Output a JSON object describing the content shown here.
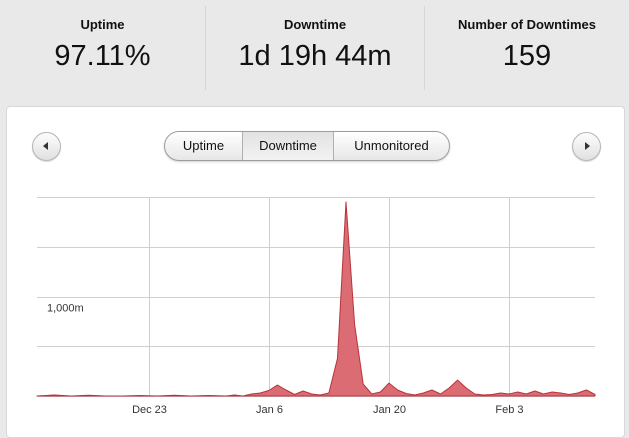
{
  "stats": [
    {
      "label": "Uptime",
      "value": "97.11%"
    },
    {
      "label": "Downtime",
      "value": "1d 19h 44m"
    },
    {
      "label": "Number of Downtimes",
      "value": "159"
    }
  ],
  "tabs": [
    {
      "label": "Uptime",
      "active": false
    },
    {
      "label": "Downtime",
      "active": true
    },
    {
      "label": "Unmonitored",
      "active": false
    }
  ],
  "nav": {
    "prev_icon": "chevron-left-icon",
    "next_icon": "chevron-right-icon"
  },
  "colors": {
    "series_fill": "#dc6c73",
    "series_stroke": "#b8333c",
    "grid": "#cfcfcf"
  },
  "chart_data": {
    "type": "area",
    "x_ticks": [
      "Dec 23",
      "Jan 6",
      "Jan 20",
      "Feb 3"
    ],
    "y_tick_labels": [
      "1,000m"
    ],
    "y_unit": "minutes",
    "ylim": [
      0,
      2000
    ],
    "grid": true,
    "series": [
      {
        "x": [
          "Dec 10",
          "Dec 12",
          "Dec 14",
          "Dec 16",
          "Dec 18",
          "Dec 20",
          "Dec 22",
          "Dec 24",
          "Dec 26",
          "Dec 28",
          "Dec 30",
          "Jan 1",
          "Jan 2",
          "Jan 3",
          "Jan 4",
          "Jan 5",
          "Jan 6",
          "Jan 7",
          "Jan 8",
          "Jan 9",
          "Jan 10",
          "Jan 11",
          "Jan 12",
          "Jan 13",
          "Jan 14",
          "Jan 15",
          "Jan 16",
          "Jan 17",
          "Jan 18",
          "Jan 19",
          "Jan 20",
          "Jan 21",
          "Jan 22",
          "Jan 23",
          "Jan 24",
          "Jan 25",
          "Jan 26",
          "Jan 27",
          "Jan 28",
          "Jan 29",
          "Jan 30",
          "Jan 31",
          "Feb 1",
          "Feb 2",
          "Feb 3",
          "Feb 4",
          "Feb 5",
          "Feb 6",
          "Feb 7",
          "Feb 8",
          "Feb 9",
          "Feb 10",
          "Feb 11",
          "Feb 12",
          "Feb 13"
        ],
        "values": [
          0,
          10,
          0,
          8,
          0,
          0,
          5,
          0,
          8,
          0,
          5,
          0,
          10,
          0,
          20,
          30,
          55,
          110,
          60,
          15,
          50,
          20,
          10,
          30,
          380,
          1950,
          720,
          120,
          20,
          40,
          130,
          60,
          25,
          10,
          30,
          60,
          20,
          80,
          160,
          80,
          20,
          10,
          15,
          30,
          20,
          40,
          20,
          50,
          20,
          40,
          30,
          15,
          30,
          60,
          15
        ]
      }
    ]
  }
}
